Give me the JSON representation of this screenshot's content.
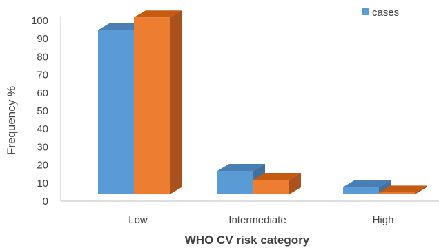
{
  "chart_data": {
    "type": "bar",
    "style": "3d-clustered-column",
    "categories": [
      "Low",
      "Intermediate",
      "High"
    ],
    "series": [
      {
        "name": "cases",
        "values": [
          91,
          13,
          4
        ],
        "color": "#5b9bd5",
        "top_color": "#4a7fb5",
        "side_color": "#41719c"
      },
      {
        "values": [
          98,
          8,
          1
        ],
        "color": "#ed7d31",
        "top_color": "#c55a11",
        "side_color": "#a9521d"
      }
    ],
    "xlabel": "WHO CV risk category",
    "ylabel": "Frequency %",
    "ylim": [
      0,
      100
    ],
    "yticks": [
      "0",
      "10",
      "20",
      "30",
      "40",
      "50",
      "60",
      "70",
      "80",
      "90",
      "100"
    ],
    "grid": false,
    "legend": "top-right"
  }
}
